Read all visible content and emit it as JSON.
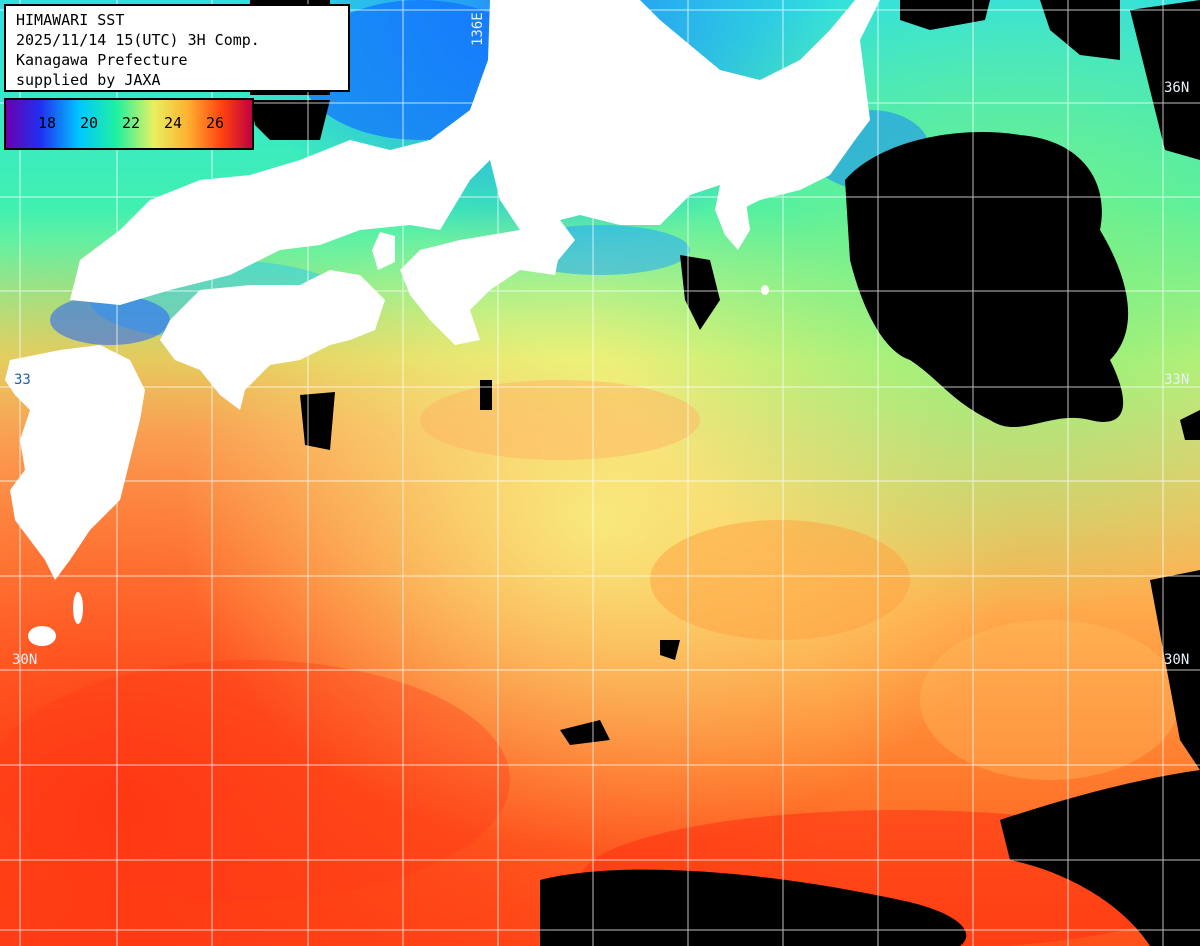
{
  "info": {
    "lines": [
      "HIMAWARI SST",
      "2025/11/14 15(UTC) 3H Comp.",
      "Kanagawa Prefecture",
      "supplied by JAXA"
    ]
  },
  "colorbar": {
    "labels": [
      "18",
      "20",
      "22",
      "24",
      "26"
    ],
    "colors": [
      "#6a00b0",
      "#2030f0",
      "#00c8ff",
      "#20f0a0",
      "#e8f060",
      "#ffb030",
      "#ff4010",
      "#c00040"
    ]
  },
  "grid_labels": {
    "lon_136": "136E",
    "lat_36_right": "36N",
    "lat_33_left": "33",
    "lat_33_right": "33N",
    "lat_30_left": "30N",
    "lat_30_right": "30N"
  },
  "palette": {
    "land": "#ffffff",
    "nodata": "#000000",
    "grid": "#ffffff",
    "cold": "#1060ff",
    "cool": "#20e8d0",
    "mild": "#80f080",
    "warm": "#f0f070",
    "hot": "#ffa040",
    "hotter": "#ff6020",
    "hottest": "#ff3010"
  }
}
